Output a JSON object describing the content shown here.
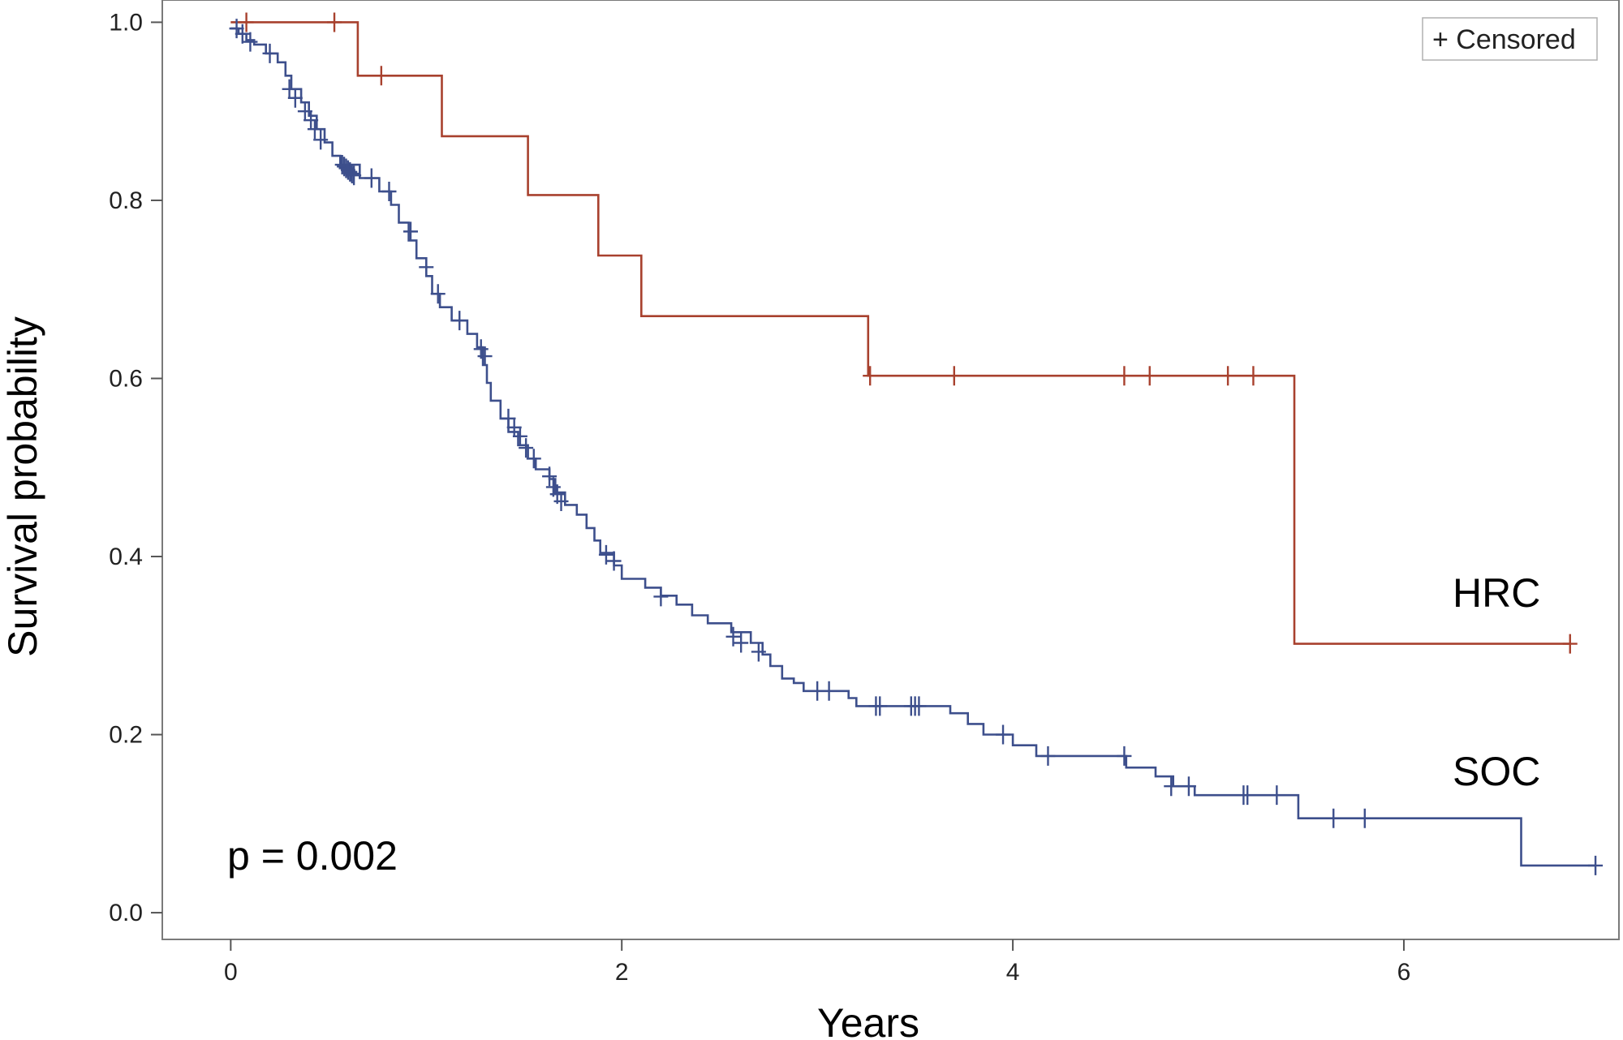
{
  "chart_data": {
    "type": "line",
    "subtype": "kaplan-meier-step",
    "xlabel": "Years",
    "ylabel": "Survival probability",
    "xlim": [
      -0.35,
      7.1
    ],
    "ylim": [
      -0.03,
      1.025
    ],
    "x_ticks": [
      0,
      2,
      4,
      6
    ],
    "x_tick_labels": [
      "0",
      "2",
      "4",
      "6"
    ],
    "y_ticks": [
      0.0,
      0.2,
      0.4,
      0.6,
      0.8,
      1.0
    ],
    "y_tick_labels": [
      "0.0",
      "0.2",
      "0.4",
      "0.6",
      "0.8",
      "1.0"
    ],
    "grid": false,
    "legend": {
      "position": "top-right",
      "label": "+ Censored"
    },
    "annotations": {
      "p_value": "p = 0.002",
      "hrc_label": "HRC",
      "soc_label": "SOC"
    },
    "series": [
      {
        "name": "HRC",
        "color": "#a8412e",
        "steps": [
          [
            0.0,
            1.0
          ],
          [
            0.65,
            0.94
          ],
          [
            1.08,
            0.872
          ],
          [
            1.52,
            0.806
          ],
          [
            1.88,
            0.738
          ],
          [
            2.1,
            0.67
          ],
          [
            3.26,
            0.603
          ],
          [
            5.44,
            0.302
          ],
          [
            6.85,
            0.302
          ]
        ],
        "censored": [
          [
            0.08,
            1.0
          ],
          [
            0.53,
            1.0
          ],
          [
            0.77,
            0.94
          ],
          [
            3.27,
            0.603
          ],
          [
            3.7,
            0.603
          ],
          [
            4.57,
            0.603
          ],
          [
            4.7,
            0.603
          ],
          [
            5.1,
            0.603
          ],
          [
            5.23,
            0.603
          ],
          [
            6.85,
            0.302
          ]
        ]
      },
      {
        "name": "SOC",
        "color": "#3d4f8c",
        "steps": [
          [
            0.0,
            0.993
          ],
          [
            0.04,
            0.987
          ],
          [
            0.08,
            0.98
          ],
          [
            0.12,
            0.975
          ],
          [
            0.18,
            0.965
          ],
          [
            0.24,
            0.955
          ],
          [
            0.28,
            0.94
          ],
          [
            0.31,
            0.925
          ],
          [
            0.36,
            0.91
          ],
          [
            0.4,
            0.895
          ],
          [
            0.44,
            0.88
          ],
          [
            0.48,
            0.865
          ],
          [
            0.52,
            0.85
          ],
          [
            0.56,
            0.84
          ],
          [
            0.66,
            0.825
          ],
          [
            0.76,
            0.81
          ],
          [
            0.82,
            0.795
          ],
          [
            0.86,
            0.775
          ],
          [
            0.91,
            0.755
          ],
          [
            0.95,
            0.735
          ],
          [
            1.0,
            0.715
          ],
          [
            1.03,
            0.695
          ],
          [
            1.07,
            0.68
          ],
          [
            1.13,
            0.665
          ],
          [
            1.21,
            0.65
          ],
          [
            1.26,
            0.635
          ],
          [
            1.29,
            0.615
          ],
          [
            1.31,
            0.595
          ],
          [
            1.33,
            0.575
          ],
          [
            1.38,
            0.555
          ],
          [
            1.42,
            0.54
          ],
          [
            1.47,
            0.525
          ],
          [
            1.52,
            0.51
          ],
          [
            1.56,
            0.498
          ],
          [
            1.63,
            0.487
          ],
          [
            1.66,
            0.472
          ],
          [
            1.71,
            0.458
          ],
          [
            1.77,
            0.447
          ],
          [
            1.82,
            0.432
          ],
          [
            1.86,
            0.418
          ],
          [
            1.89,
            0.404
          ],
          [
            1.96,
            0.39
          ],
          [
            2.0,
            0.375
          ],
          [
            2.12,
            0.365
          ],
          [
            2.2,
            0.356
          ],
          [
            2.28,
            0.346
          ],
          [
            2.36,
            0.334
          ],
          [
            2.44,
            0.325
          ],
          [
            2.56,
            0.315
          ],
          [
            2.66,
            0.303
          ],
          [
            2.72,
            0.29
          ],
          [
            2.76,
            0.277
          ],
          [
            2.82,
            0.263
          ],
          [
            2.88,
            0.258
          ],
          [
            2.93,
            0.249
          ],
          [
            3.16,
            0.241
          ],
          [
            3.2,
            0.232
          ],
          [
            3.68,
            0.224
          ],
          [
            3.77,
            0.212
          ],
          [
            3.85,
            0.2
          ],
          [
            4.0,
            0.188
          ],
          [
            4.12,
            0.176
          ],
          [
            4.58,
            0.163
          ],
          [
            4.73,
            0.153
          ],
          [
            4.82,
            0.142
          ],
          [
            4.93,
            0.132
          ],
          [
            5.46,
            0.106
          ],
          [
            6.6,
            0.053
          ],
          [
            6.98,
            0.053
          ]
        ],
        "censored": [
          [
            0.03,
            0.993
          ],
          [
            0.06,
            0.987
          ],
          [
            0.1,
            0.978
          ],
          [
            0.2,
            0.965
          ],
          [
            0.3,
            0.925
          ],
          [
            0.33,
            0.915
          ],
          [
            0.38,
            0.9
          ],
          [
            0.41,
            0.89
          ],
          [
            0.43,
            0.88
          ],
          [
            0.46,
            0.868
          ],
          [
            0.57,
            0.84
          ],
          [
            0.58,
            0.838
          ],
          [
            0.59,
            0.836
          ],
          [
            0.6,
            0.834
          ],
          [
            0.61,
            0.832
          ],
          [
            0.62,
            0.83
          ],
          [
            0.63,
            0.828
          ],
          [
            0.72,
            0.825
          ],
          [
            0.81,
            0.81
          ],
          [
            0.92,
            0.765
          ],
          [
            1.0,
            0.725
          ],
          [
            1.06,
            0.695
          ],
          [
            1.17,
            0.665
          ],
          [
            1.28,
            0.633
          ],
          [
            1.3,
            0.625
          ],
          [
            1.42,
            0.555
          ],
          [
            1.45,
            0.545
          ],
          [
            1.48,
            0.535
          ],
          [
            1.51,
            0.522
          ],
          [
            1.55,
            0.51
          ],
          [
            1.63,
            0.49
          ],
          [
            1.65,
            0.478
          ],
          [
            1.67,
            0.47
          ],
          [
            1.69,
            0.462
          ],
          [
            1.92,
            0.402
          ],
          [
            1.96,
            0.395
          ],
          [
            2.2,
            0.355
          ],
          [
            2.57,
            0.31
          ],
          [
            2.61,
            0.303
          ],
          [
            2.7,
            0.293
          ],
          [
            3.0,
            0.249
          ],
          [
            3.06,
            0.249
          ],
          [
            3.3,
            0.232
          ],
          [
            3.32,
            0.232
          ],
          [
            3.48,
            0.232
          ],
          [
            3.5,
            0.232
          ],
          [
            3.52,
            0.232
          ],
          [
            3.95,
            0.2
          ],
          [
            4.18,
            0.176
          ],
          [
            4.57,
            0.176
          ],
          [
            4.81,
            0.142
          ],
          [
            4.9,
            0.142
          ],
          [
            5.18,
            0.132
          ],
          [
            5.2,
            0.132
          ],
          [
            5.35,
            0.132
          ],
          [
            5.64,
            0.106
          ],
          [
            5.8,
            0.106
          ],
          [
            6.98,
            0.053
          ]
        ]
      }
    ]
  }
}
